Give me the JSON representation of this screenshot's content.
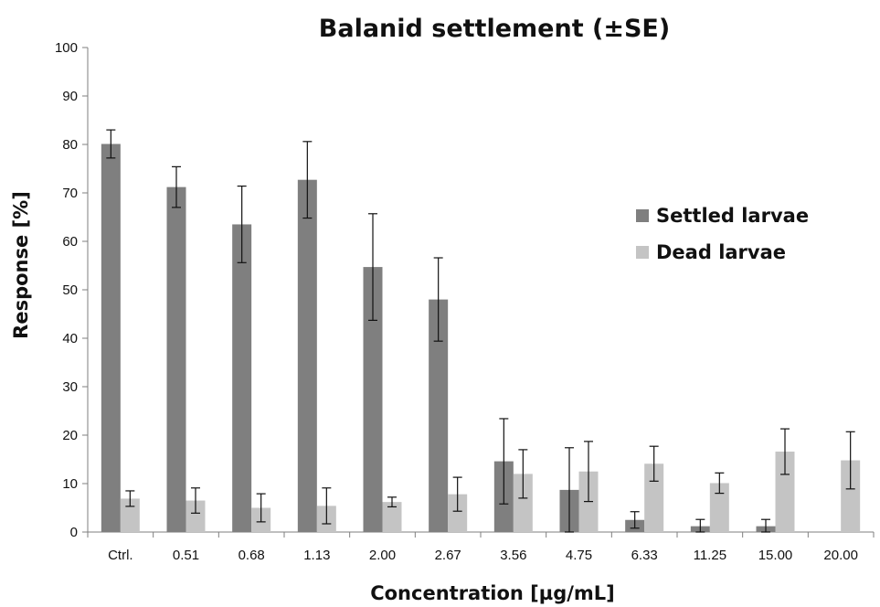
{
  "chart_data": {
    "type": "bar",
    "title": "Balanid settlement (±SE)",
    "xlabel": "Concentration [µg/mL]",
    "ylabel": "Response [%]",
    "ylim": [
      0,
      100
    ],
    "yticks": [
      0,
      10,
      20,
      30,
      40,
      50,
      60,
      70,
      80,
      90,
      100
    ],
    "categories": [
      "Ctrl.",
      "0.51",
      "0.68",
      "1.13",
      "2.00",
      "2.67",
      "3.56",
      "4.75",
      "6.33",
      "11.25",
      "15.00",
      "20.00"
    ],
    "series": [
      {
        "name": "Settled larvae",
        "color": "#7f7f7f",
        "values": [
          80.1,
          71.2,
          63.5,
          72.7,
          54.7,
          48.0,
          14.6,
          8.7,
          2.5,
          1.2,
          1.2,
          0
        ],
        "errors": [
          2.9,
          4.2,
          7.9,
          7.9,
          11.0,
          8.6,
          8.8,
          8.7,
          1.7,
          1.4,
          1.4,
          0
        ]
      },
      {
        "name": "Dead larvae",
        "color": "#c4c4c4",
        "values": [
          6.9,
          6.5,
          5.0,
          5.4,
          6.2,
          7.8,
          12.0,
          12.5,
          14.1,
          10.1,
          16.6,
          14.8
        ],
        "errors": [
          1.6,
          2.6,
          2.9,
          3.7,
          1.0,
          3.5,
          5.0,
          6.2,
          3.6,
          2.1,
          4.7,
          5.9
        ]
      }
    ],
    "legend_position": "right",
    "grid": false
  }
}
